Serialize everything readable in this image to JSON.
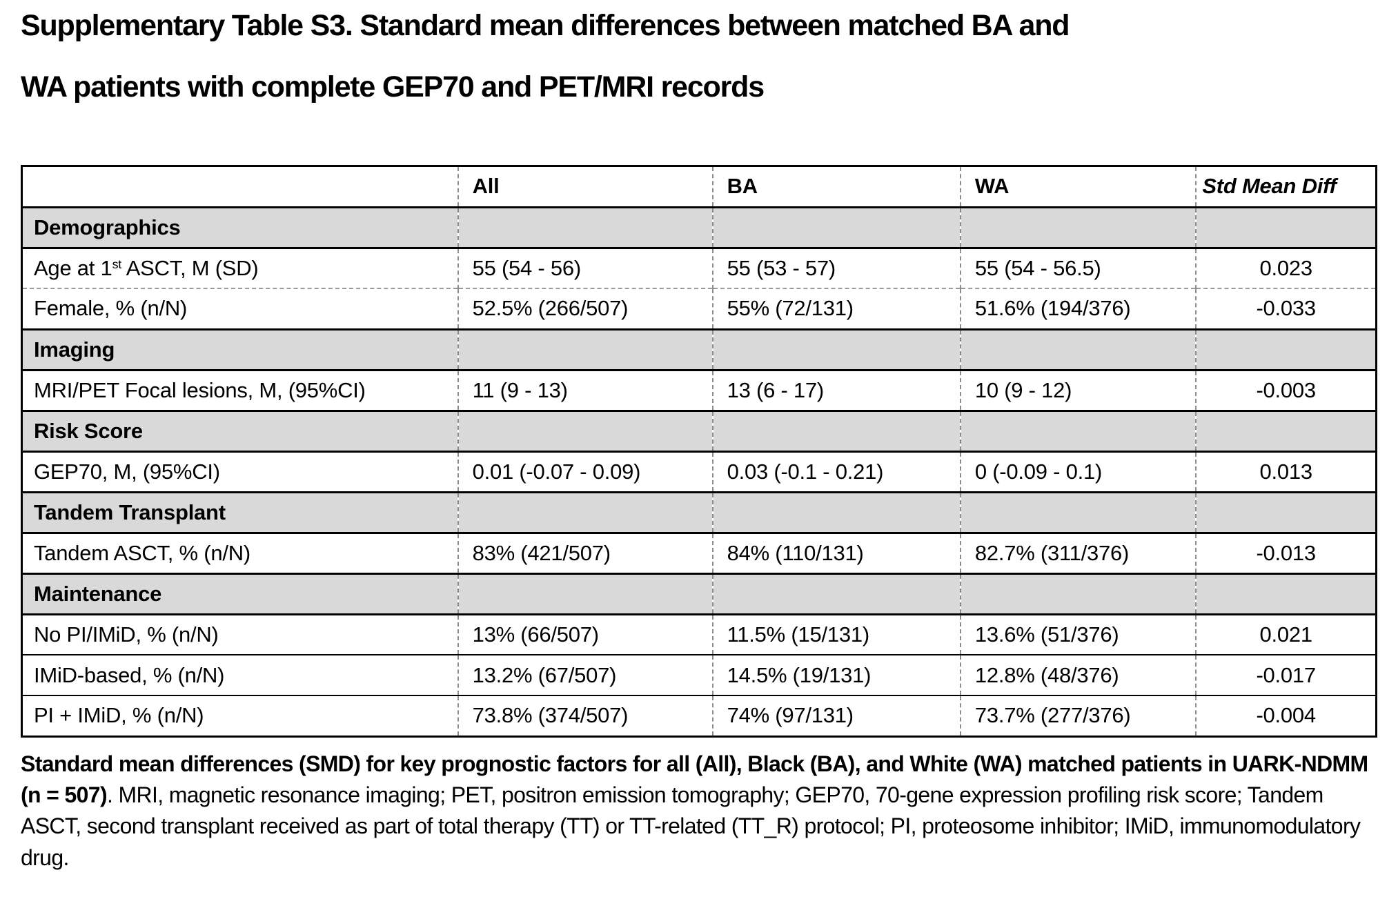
{
  "title": {
    "line1": "Supplementary Table S3. Standard mean differences between matched BA and",
    "line2": "WA patients with complete GEP70 and PET/MRI records"
  },
  "colors": {
    "section_row_bg": "#d9d9d9",
    "solid_border": "#000000",
    "dashed_border": "#8c8c8c"
  },
  "table": {
    "columns": [
      "",
      "All",
      "BA",
      "WA",
      "Std Mean Diff"
    ],
    "rows": [
      {
        "type": "section",
        "label": "Demographics"
      },
      {
        "type": "data",
        "label_pre": "Age at 1",
        "label_sup": "st",
        "label_post": " ASCT, M (SD)",
        "all": "55 (54 - 56)",
        "ba": "55 (53 - 57)",
        "wa": "55 (54 - 56.5)",
        "smd": "0.023"
      },
      {
        "type": "data",
        "label": "Female, % (n/N)",
        "all": "52.5% (266/507)",
        "ba": "55% (72/131)",
        "wa": "51.6% (194/376)",
        "smd": "-0.033"
      },
      {
        "type": "section",
        "label": "Imaging"
      },
      {
        "type": "data",
        "label": "MRI/PET Focal lesions, M, (95%CI)",
        "all": "11 (9 - 13)",
        "ba": "13 (6 - 17)",
        "wa": "10 (9 - 12)",
        "smd": "-0.003"
      },
      {
        "type": "section",
        "label": "Risk Score"
      },
      {
        "type": "data",
        "label": "GEP70, M, (95%CI)",
        "all": "0.01 (-0.07 - 0.09)",
        "ba": "0.03 (-0.1 - 0.21)",
        "wa": "0 (-0.09 - 0.1)",
        "smd": "0.013"
      },
      {
        "type": "section",
        "label": "Tandem Transplant"
      },
      {
        "type": "data",
        "label": "Tandem ASCT, % (n/N)",
        "all": "83% (421/507)",
        "ba": "84% (110/131)",
        "wa": "82.7% (311/376)",
        "smd": "-0.013"
      },
      {
        "type": "section",
        "label": "Maintenance"
      },
      {
        "type": "data",
        "label": "No PI/IMiD, % (n/N)",
        "all": "13% (66/507)",
        "ba": "11.5% (15/131)",
        "wa": "13.6% (51/376)",
        "smd": "0.021"
      },
      {
        "type": "data",
        "label": "IMiD-based, % (n/N)",
        "all": "13.2% (67/507)",
        "ba": "14.5% (19/131)",
        "wa": "12.8% (48/376)",
        "smd": "-0.017"
      },
      {
        "type": "data",
        "label": "PI + IMiD, % (n/N)",
        "all": "73.8% (374/507)",
        "ba": "74% (97/131)",
        "wa": "73.7% (277/376)",
        "smd": "-0.004"
      }
    ]
  },
  "caption": {
    "bold": "Standard mean differences (SMD) for key prognostic factors for all (All), Black (BA), and White (WA) matched patients in UARK-NDMM (n = 507)",
    "regular": ". MRI, magnetic resonance imaging; PET, positron emission tomography; GEP70, 70-gene expression profiling risk score; Tandem ASCT, second transplant received as part of total therapy (TT) or TT-related (TT_R) protocol; PI, proteosome inhibitor; IMiD, immunomodulatory drug."
  }
}
